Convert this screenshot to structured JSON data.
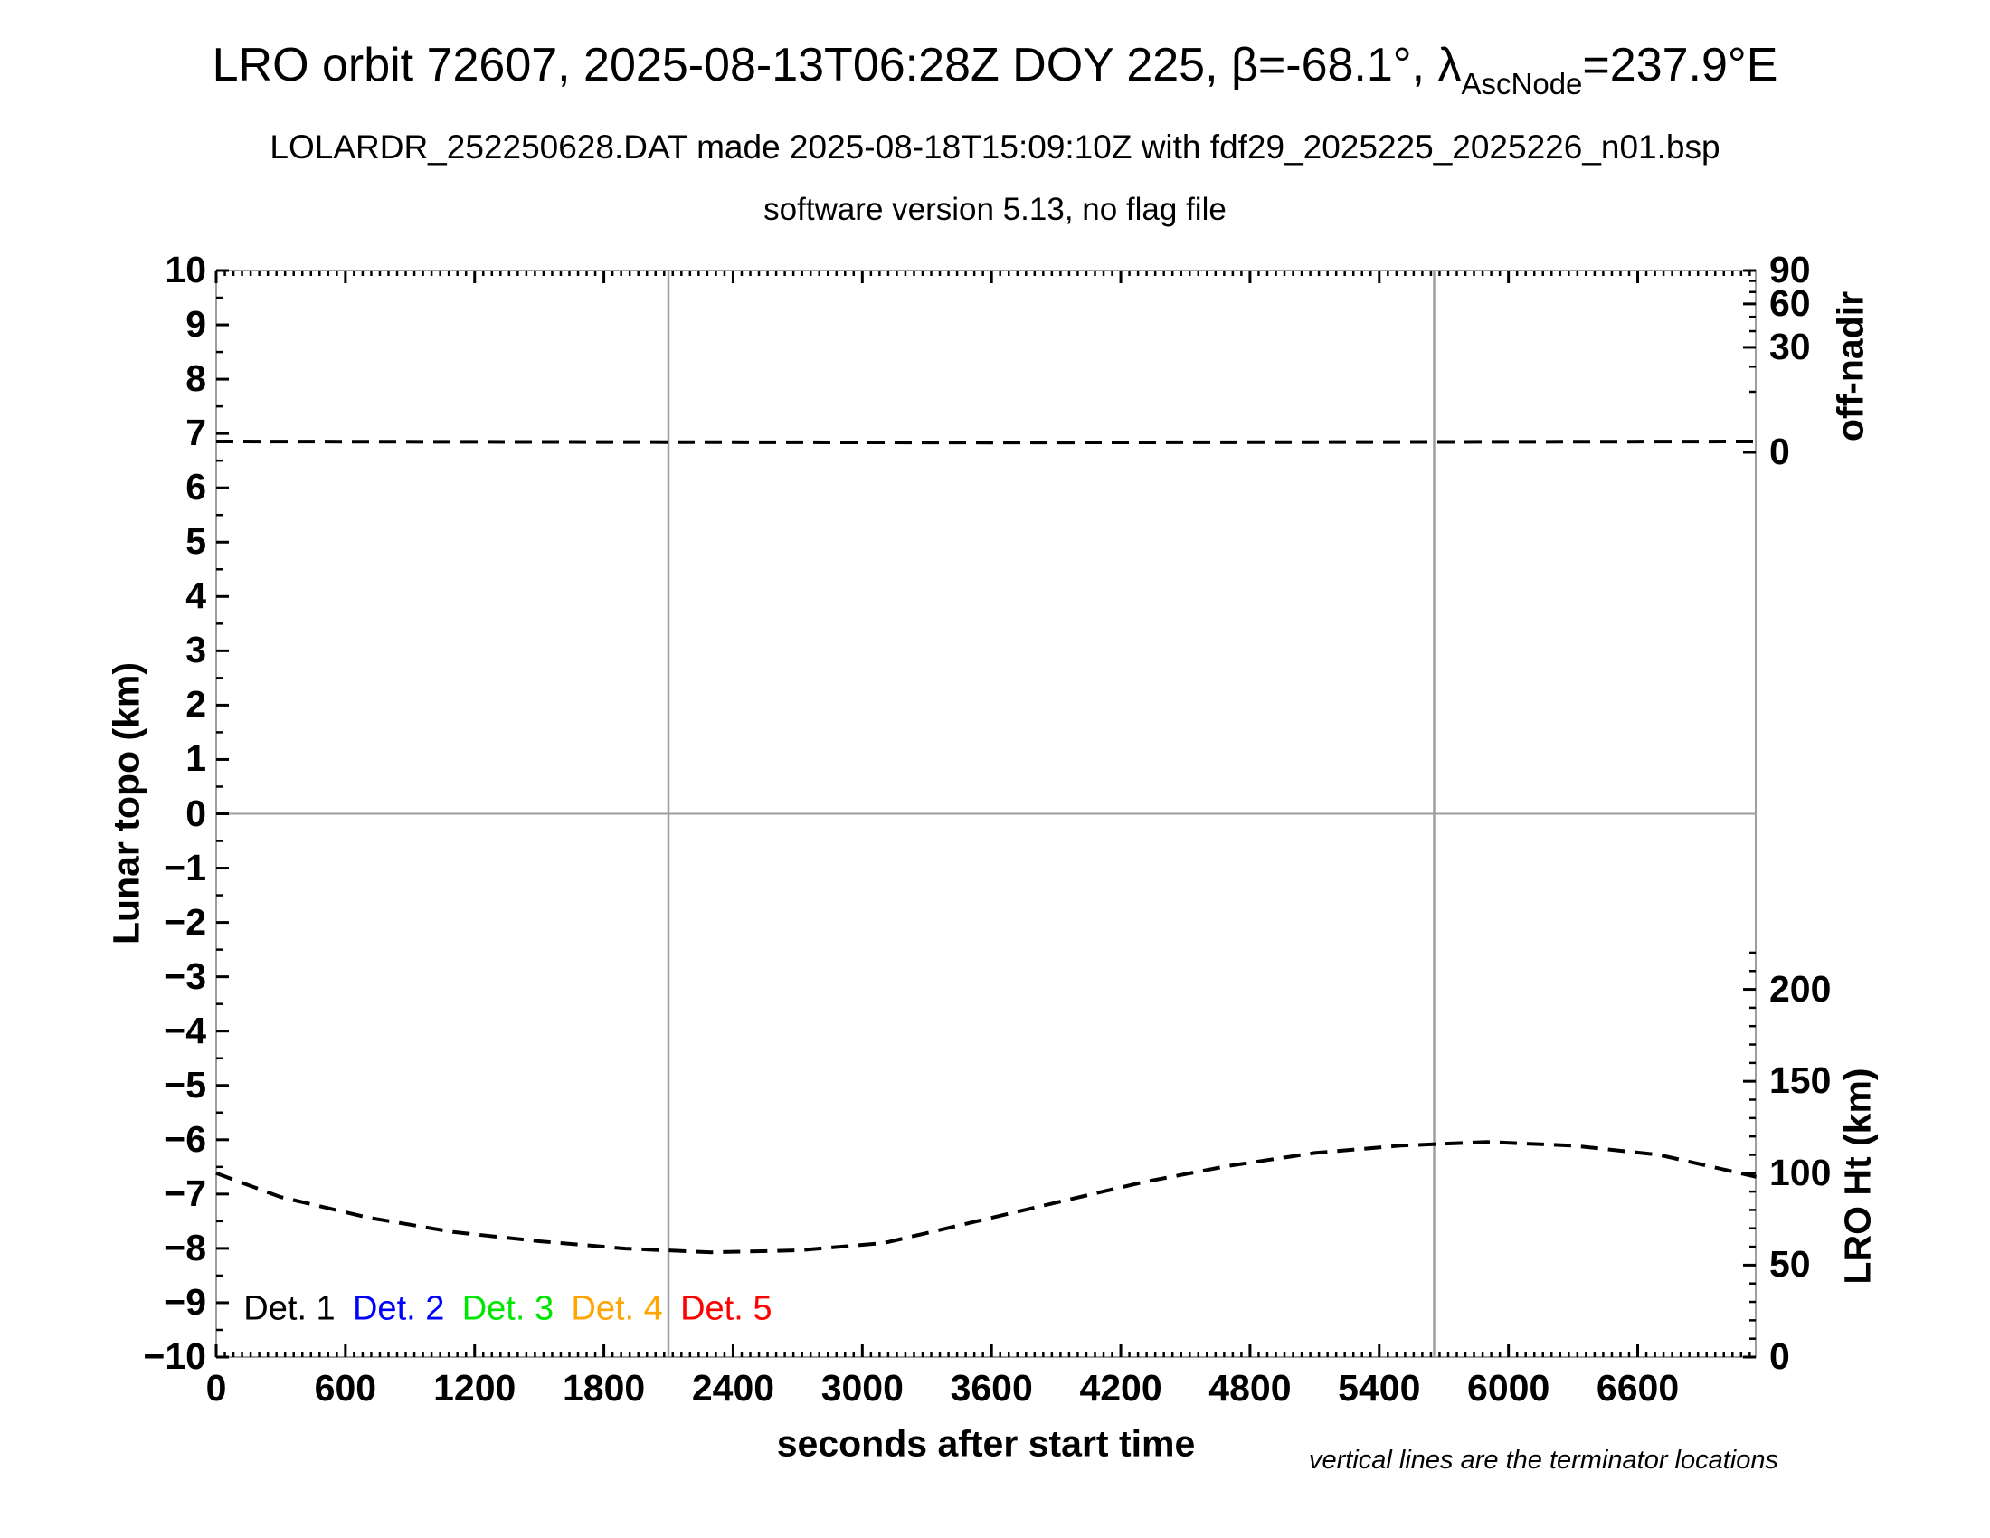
{
  "title": {
    "pre": "LRO orbit 72607, 2025-08-13T06:28Z DOY 225, β=-68.1°, λ",
    "sub": "AscNode",
    "post": "=237.9°E"
  },
  "subtitle1": "LOLARDR_252250628.DAT made 2025-08-18T15:09:10Z with fdf29_2025225_2025226_n01.bsp",
  "subtitle2": "software version 5.13, no flag file",
  "footnote": "vertical lines are the terminator locations",
  "axes": {
    "x": {
      "label": "seconds after start time"
    },
    "y_left": {
      "label": "Lunar topo (km)"
    },
    "right_top": {
      "label": "off-nadir"
    },
    "right_bottom": {
      "label": "LRO Ht (km)"
    }
  },
  "legend": {
    "items": [
      {
        "label": "Det. 1",
        "color": "#000000"
      },
      {
        "label": "Det. 2",
        "color": "#0000ff"
      },
      {
        "label": "Det. 3",
        "color": "#00e600"
      },
      {
        "label": "Det. 4",
        "color": "#ffa500"
      },
      {
        "label": "Det. 5",
        "color": "#ff0000"
      }
    ]
  },
  "chart_data": {
    "type": "line",
    "title": "LRO orbit 72607, 2025-08-13T06:28Z DOY 225, β=-68.1°, λAscNode=237.9°E",
    "xlabel": "seconds after start time",
    "x_unit": "seconds",
    "x_range": [
      0,
      7148
    ],
    "x_ticks": [
      0,
      600,
      1200,
      1800,
      2400,
      3000,
      3600,
      4200,
      4800,
      5400,
      6000,
      6600
    ],
    "x_minor_step_s": 40,
    "grid": "off",
    "left_axis": {
      "label": "Lunar topo (km)",
      "range": [
        -10,
        10
      ],
      "major_step": 1,
      "minor_step": 0.5
    },
    "right_top_axis": {
      "label": "off-nadir",
      "unit": "degrees",
      "scale": "sqrt",
      "range": [
        0,
        90
      ],
      "labeled_ticks": [
        90,
        60,
        30,
        0
      ],
      "minor_tick_step": 10
    },
    "right_bottom_axis": {
      "label": "LRO Ht (km)",
      "range_km": [
        0,
        295.5
      ],
      "labeled_ticks": [
        200,
        150,
        100,
        50,
        0
      ],
      "minor_tick_step_km": 10,
      "max_minor_tick_km": 220
    },
    "terminator_lines_s": [
      2100,
      5655
    ],
    "zero_topo_gridline": true,
    "series": [
      {
        "name": "off-nadir angle",
        "axis": "right_top",
        "style": "dashed",
        "color": "#000000",
        "points": [
          [
            0,
            0.32
          ],
          [
            1800,
            0.29
          ],
          [
            3600,
            0.26
          ],
          [
            5400,
            0.29
          ],
          [
            7148,
            0.32
          ]
        ]
      },
      {
        "name": "LRO height",
        "axis": "right_bottom",
        "style": "dashed",
        "color": "#000000",
        "points": [
          [
            0,
            100
          ],
          [
            300,
            87
          ],
          [
            700,
            76
          ],
          [
            1100,
            68
          ],
          [
            1500,
            63
          ],
          [
            1900,
            59
          ],
          [
            2300,
            57
          ],
          [
            2700,
            58
          ],
          [
            3100,
            62
          ],
          [
            3500,
            73
          ],
          [
            3900,
            84
          ],
          [
            4300,
            95
          ],
          [
            4700,
            104
          ],
          [
            5100,
            111
          ],
          [
            5500,
            115
          ],
          [
            5900,
            117
          ],
          [
            6300,
            115
          ],
          [
            6700,
            110
          ],
          [
            7150,
            98
          ]
        ]
      }
    ]
  }
}
